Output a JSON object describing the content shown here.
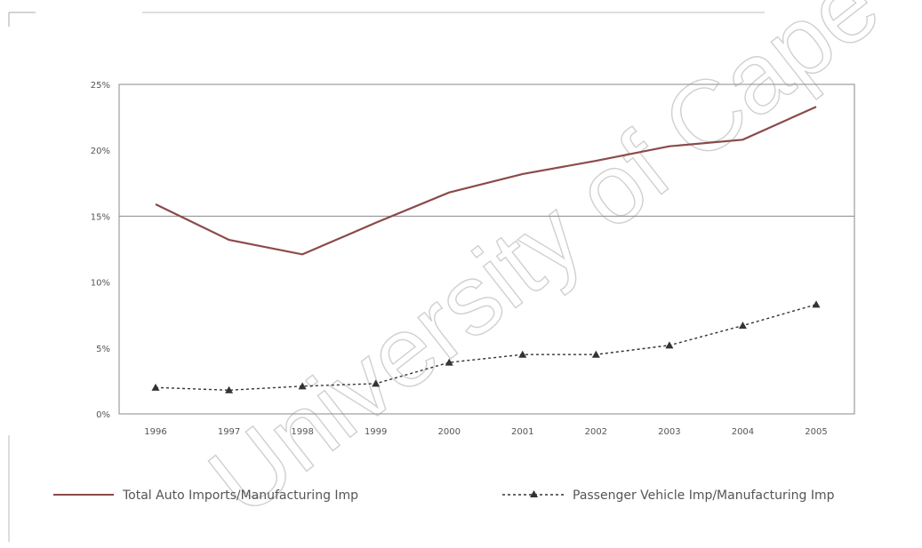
{
  "watermark": "University of Cape Town",
  "chart_data": {
    "type": "line",
    "categories": [
      "1996",
      "1997",
      "1998",
      "1999",
      "2000",
      "2001",
      "2002",
      "2003",
      "2004",
      "2005"
    ],
    "ylim": [
      0,
      25
    ],
    "yticks": [
      {
        "value": 0,
        "label": "0%"
      },
      {
        "value": 5,
        "label": "5%"
      },
      {
        "value": 10,
        "label": "10%"
      },
      {
        "value": 15,
        "label": "15%"
      },
      {
        "value": 20,
        "label": "20%"
      },
      {
        "value": 25,
        "label": "25%"
      }
    ],
    "grid": "horizontal line at 15%",
    "legend_position": "bottom",
    "series": [
      {
        "name": "Total Auto Imports/Manufacturing Imp",
        "values": [
          15.9,
          13.2,
          12.1,
          14.5,
          16.8,
          18.2,
          19.2,
          20.3,
          20.8,
          23.3
        ],
        "color": "#8b4a4a",
        "style": "solid",
        "marker": "none"
      },
      {
        "name": "Passenger Vehicle Imp/Manufacturing Imp",
        "values": [
          2.0,
          1.8,
          2.1,
          2.3,
          3.9,
          4.5,
          4.5,
          5.2,
          6.7,
          8.3
        ],
        "color": "#333333",
        "style": "dotted",
        "marker": "triangle"
      }
    ]
  }
}
